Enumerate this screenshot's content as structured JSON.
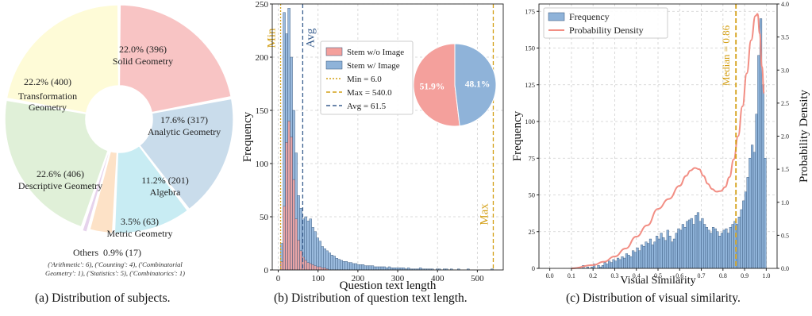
{
  "captions": {
    "a": "(a) Distribution of subjects.",
    "b": "(b) Distribution of question text length.",
    "c": "(c) Distribution of visual similarity."
  },
  "chart_data": [
    {
      "type": "pie",
      "donut": true,
      "slices": [
        {
          "label": "Solid Geometry",
          "value": 396,
          "pct_text": "22.0% (396)",
          "color": "#f8c4c4"
        },
        {
          "label": "Analytic Geometry",
          "value": 317,
          "pct_text": "17.6% (317)",
          "color": "#c9dceb"
        },
        {
          "label": "Algebra",
          "value": 201,
          "pct_text": "11.2% (201)",
          "color": "#c8ecf3"
        },
        {
          "label": "Metric Geometry",
          "value": 63,
          "pct_text": "3.5% (63)",
          "color": "#fde2c7"
        },
        {
          "label": "Others",
          "value": 17,
          "pct_text": "0.9% (17)",
          "color": "#e6d3ec"
        },
        {
          "label": "Descriptive Geometry",
          "value": 406,
          "pct_text": "22.6% (406)",
          "color": "#e0f0d8"
        },
        {
          "label": "Transformation Geometry",
          "label_lines": [
            "Transformation",
            "Geometry"
          ],
          "value": 400,
          "pct_text": "22.2% (400)",
          "color": "#fefbd7"
        }
      ],
      "others_note": [
        "('Arithmetic': 6), ('Counting': 4), ('Combinatorial",
        "Geometry': 1), ('Statistics': 5), ('Combinatorics': 1)"
      ]
    },
    {
      "type": "bar",
      "subtype": "histogram",
      "xlabel": "Question text length",
      "ylabel": "Frequency",
      "xlim": [
        -15,
        565
      ],
      "ylim": [
        0,
        250
      ],
      "xticks": [
        0,
        100,
        200,
        300,
        400,
        500
      ],
      "yticks": [
        0,
        50,
        100,
        150,
        200,
        250
      ],
      "bin_width": 6,
      "series": [
        {
          "name": "Stem w/o Image",
          "color": "#f4a09c",
          "bin_starts": [
            6,
            12,
            18,
            24,
            30,
            36,
            42,
            48,
            54,
            60,
            66,
            72,
            78,
            84,
            90,
            96,
            102,
            108,
            114,
            120
          ],
          "values": [
            8,
            60,
            120,
            140,
            125,
            85,
            48,
            28,
            18,
            12,
            9,
            7,
            6,
            5,
            4,
            3,
            3,
            2,
            2,
            1
          ]
        },
        {
          "name": "Stem w/ Image",
          "color": "#8fb3d9",
          "bin_starts": [
            6,
            12,
            18,
            24,
            30,
            36,
            42,
            48,
            54,
            60,
            66,
            72,
            78,
            84,
            90,
            96,
            102,
            108,
            114,
            120,
            126,
            132,
            138,
            144,
            150,
            156,
            162,
            168,
            174,
            180,
            186,
            192,
            198,
            204,
            210,
            216,
            222,
            228,
            234,
            240,
            246,
            252,
            258,
            264,
            270,
            276,
            282,
            288,
            294,
            300,
            306,
            312,
            318,
            324,
            330,
            336,
            342,
            348,
            354,
            360,
            366,
            372,
            378,
            384,
            390,
            396,
            402,
            408,
            414,
            420,
            426,
            432,
            438,
            444,
            450,
            456,
            462,
            468,
            474,
            480,
            486,
            492,
            498,
            504,
            510,
            516,
            522,
            528,
            534
          ],
          "values": [
            25,
            242,
            222,
            246,
            200,
            150,
            110,
            70,
            58,
            48,
            50,
            46,
            48,
            40,
            36,
            30,
            27,
            22,
            20,
            18,
            16,
            14,
            13,
            11,
            10,
            9,
            8,
            8,
            7,
            7,
            6,
            6,
            5,
            5,
            5,
            4,
            4,
            4,
            4,
            3,
            3,
            3,
            3,
            3,
            2,
            3,
            2,
            2,
            2,
            2,
            2,
            2,
            1,
            2,
            1,
            1,
            1,
            1,
            2,
            1,
            1,
            1,
            1,
            1,
            0,
            1,
            1,
            0,
            1,
            1,
            0,
            1,
            0,
            0,
            1,
            0,
            0,
            0,
            1,
            0,
            0,
            0,
            0,
            0,
            0,
            0,
            0,
            0,
            1
          ]
        }
      ],
      "vlines": [
        {
          "label": "Min = 6.0",
          "x": 6.0,
          "tag": "Min",
          "color": "#d4a017",
          "style": "dotted"
        },
        {
          "label": "Max = 540.0",
          "x": 540.0,
          "tag": "Max",
          "color": "#d4a017",
          "style": "dashed"
        },
        {
          "label": "Avg = 61.5",
          "x": 61.5,
          "tag": "Avg",
          "color": "#3a5f8f",
          "style": "dashed"
        }
      ],
      "inset_pie": [
        {
          "label": "Stem w/o Image",
          "value": 51.9,
          "text": "51.9%",
          "color": "#f4a09c"
        },
        {
          "label": "Stem w/ Image",
          "value": 48.1,
          "text": "48.1%",
          "color": "#8fb3d9"
        }
      ],
      "legend_position": "upper-center",
      "grid": true
    },
    {
      "type": "bar",
      "subtype": "histogram+density",
      "xlabel": "Visual Similarity",
      "ylabel": "Frequency",
      "ylabel_right": "Probability Density",
      "xlim": [
        -0.05,
        1.05
      ],
      "ylim": [
        0,
        180
      ],
      "ylim_right": [
        0,
        4.0
      ],
      "xticks": [
        0.0,
        0.1,
        0.2,
        0.3,
        0.4,
        0.5,
        0.6,
        0.7,
        0.8,
        0.9,
        1.0
      ],
      "yticks": [
        0,
        25,
        50,
        75,
        100,
        125,
        150,
        175
      ],
      "yticks_right": [
        0.0,
        0.5,
        1.0,
        1.5,
        2.0,
        2.5,
        3.0,
        3.5,
        4.0
      ],
      "bin_width": 0.01,
      "series": [
        {
          "name": "Frequency",
          "color": "#8fb3d9",
          "bin_starts": [
            0.15,
            0.16,
            0.17,
            0.18,
            0.19,
            0.2,
            0.21,
            0.22,
            0.23,
            0.24,
            0.25,
            0.26,
            0.27,
            0.28,
            0.29,
            0.3,
            0.31,
            0.32,
            0.33,
            0.34,
            0.35,
            0.36,
            0.37,
            0.38,
            0.39,
            0.4,
            0.41,
            0.42,
            0.43,
            0.44,
            0.45,
            0.46,
            0.47,
            0.48,
            0.49,
            0.5,
            0.51,
            0.52,
            0.53,
            0.54,
            0.55,
            0.56,
            0.57,
            0.58,
            0.59,
            0.6,
            0.61,
            0.62,
            0.63,
            0.64,
            0.65,
            0.66,
            0.67,
            0.68,
            0.69,
            0.7,
            0.71,
            0.72,
            0.73,
            0.74,
            0.75,
            0.76,
            0.77,
            0.78,
            0.79,
            0.8,
            0.81,
            0.82,
            0.83,
            0.84,
            0.85,
            0.86,
            0.87,
            0.88,
            0.89,
            0.9,
            0.91,
            0.92,
            0.93,
            0.94,
            0.95,
            0.96,
            0.97,
            0.98,
            0.99
          ],
          "values": [
            2,
            0,
            1,
            0,
            1,
            3,
            0,
            2,
            1,
            2,
            4,
            3,
            5,
            4,
            6,
            5,
            7,
            6,
            8,
            7,
            10,
            9,
            8,
            12,
            11,
            14,
            12,
            16,
            15,
            18,
            17,
            20,
            16,
            18,
            22,
            20,
            24,
            21,
            19,
            26,
            22,
            18,
            20,
            24,
            27,
            26,
            30,
            28,
            32,
            33,
            34,
            30,
            36,
            38,
            32,
            34,
            30,
            28,
            26,
            24,
            28,
            27,
            25,
            22,
            24,
            26,
            27,
            24,
            28,
            30,
            32,
            30,
            35,
            40,
            46,
            52,
            62,
            75,
            84,
            79,
            105,
            145,
            170,
            125,
            75
          ]
        }
      ],
      "density_line": {
        "name": "Probability Density",
        "color": "#f28e84",
        "x": [
          0.1,
          0.2,
          0.25,
          0.3,
          0.35,
          0.4,
          0.45,
          0.5,
          0.55,
          0.6,
          0.63,
          0.65,
          0.67,
          0.69,
          0.71,
          0.73,
          0.75,
          0.77,
          0.79,
          0.81,
          0.83,
          0.85,
          0.87,
          0.89,
          0.91,
          0.93,
          0.95,
          0.96,
          0.97,
          0.98,
          0.99
        ],
        "y": [
          0.0,
          0.05,
          0.1,
          0.18,
          0.3,
          0.48,
          0.65,
          0.9,
          1.05,
          1.25,
          1.4,
          1.48,
          1.52,
          1.5,
          1.4,
          1.28,
          1.2,
          1.16,
          1.17,
          1.23,
          1.38,
          1.65,
          2.0,
          2.45,
          2.95,
          3.45,
          3.82,
          3.85,
          3.55,
          3.05,
          2.65
        ]
      },
      "vlines": [
        {
          "label": "Median = 0.86",
          "x": 0.86,
          "color": "#d4a017",
          "style": "dashed"
        }
      ],
      "legend_position": "upper-left",
      "grid": true
    }
  ]
}
